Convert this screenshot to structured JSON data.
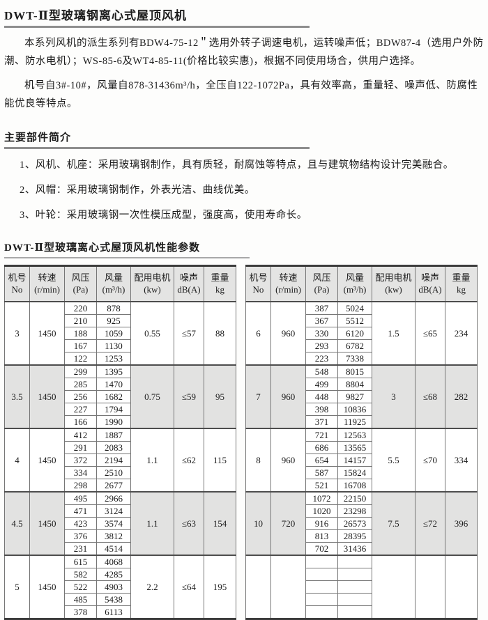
{
  "page": {
    "title": "DWT-Ⅱ型玻璃钢离心式屋顶风机",
    "para1": "本系列风机的派生系列有BDW4-75-12＂选用外转子调速电机，运转噪声低；BDW87-4（选用户外防潮、防水电机）；WS-85-6及WT4-85-11(价格比较实惠)，根据不同使用场合，供用户选择。",
    "para2": "机号自3#-10#，风量自878-31436m³/h，全压自122-1072Pa，具有效率高，重量轻、噪声低、防腐性能优良等特点。",
    "section2_title": "主要部件简介",
    "list": [
      "1、风机、机座：采用玻璃钢制作，具有质轻，耐腐蚀等特点，且与建筑物结构设计完美融合。",
      "2、风帽：采用玻璃钢制作，外表光洁、曲线优美。",
      "3、叶轮：采用玻璃钢一次性模压成型，强度高，使用寿命长。"
    ],
    "table_title": "DWT-Ⅱ型玻璃离心式屋顶风机性能参数"
  },
  "table": {
    "headers": [
      {
        "key": "no",
        "line1": "机号",
        "line2": "No"
      },
      {
        "key": "speed",
        "line1": "转速",
        "line2": "(r/min)"
      },
      {
        "key": "pressure",
        "line1": "风压",
        "line2": "(Pa)"
      },
      {
        "key": "flow",
        "line1": "风量",
        "line2": "(m³/h)"
      },
      {
        "key": "motor",
        "line1": "配用电机",
        "line2": "(kw)"
      },
      {
        "key": "noise",
        "line1": "噪声",
        "line2": "dB(A)"
      },
      {
        "key": "weight",
        "line1": "重量",
        "line2": "kg"
      }
    ],
    "left_groups": [
      {
        "no": "3",
        "speed": "1450",
        "motor": "0.55",
        "noise": "≤57",
        "weight": "88",
        "shade": false,
        "points": [
          [
            "220",
            "878"
          ],
          [
            "210",
            "925"
          ],
          [
            "188",
            "1059"
          ],
          [
            "167",
            "1130"
          ],
          [
            "122",
            "1253"
          ]
        ]
      },
      {
        "no": "3.5",
        "speed": "1450",
        "motor": "0.75",
        "noise": "≤59",
        "weight": "95",
        "shade": true,
        "points": [
          [
            "299",
            "1395"
          ],
          [
            "285",
            "1470"
          ],
          [
            "256",
            "1682"
          ],
          [
            "227",
            "1794"
          ],
          [
            "166",
            "1990"
          ]
        ]
      },
      {
        "no": "4",
        "speed": "1450",
        "motor": "1.1",
        "noise": "≤62",
        "weight": "115",
        "shade": false,
        "points": [
          [
            "412",
            "1887"
          ],
          [
            "291",
            "2083"
          ],
          [
            "372",
            "2194"
          ],
          [
            "334",
            "2510"
          ],
          [
            "298",
            "2677"
          ]
        ]
      },
      {
        "no": "4.5",
        "speed": "1450",
        "motor": "1.1",
        "noise": "≤63",
        "weight": "154",
        "shade": true,
        "points": [
          [
            "495",
            "2966"
          ],
          [
            "471",
            "3124"
          ],
          [
            "423",
            "3574"
          ],
          [
            "376",
            "3812"
          ],
          [
            "231",
            "4514"
          ]
        ]
      },
      {
        "no": "5",
        "speed": "1450",
        "motor": "2.2",
        "noise": "≤64",
        "weight": "195",
        "shade": false,
        "points": [
          [
            "615",
            "4068"
          ],
          [
            "582",
            "4285"
          ],
          [
            "522",
            "4903"
          ],
          [
            "485",
            "5438"
          ],
          [
            "378",
            "6113"
          ]
        ]
      }
    ],
    "right_groups": [
      {
        "no": "6",
        "speed": "960",
        "motor": "1.5",
        "noise": "≤65",
        "weight": "234",
        "shade": false,
        "points": [
          [
            "387",
            "5024"
          ],
          [
            "367",
            "5512"
          ],
          [
            "330",
            "6120"
          ],
          [
            "293",
            "6782"
          ],
          [
            "223",
            "7338"
          ]
        ]
      },
      {
        "no": "7",
        "speed": "960",
        "motor": "3",
        "noise": "≤68",
        "weight": "282",
        "shade": true,
        "points": [
          [
            "548",
            "8015"
          ],
          [
            "499",
            "8804"
          ],
          [
            "448",
            "9827"
          ],
          [
            "398",
            "10836"
          ],
          [
            "371",
            "11925"
          ]
        ]
      },
      {
        "no": "8",
        "speed": "960",
        "motor": "5.5",
        "noise": "≤70",
        "weight": "334",
        "shade": false,
        "points": [
          [
            "721",
            "12563"
          ],
          [
            "686",
            "13565"
          ],
          [
            "654",
            "14157"
          ],
          [
            "587",
            "15824"
          ],
          [
            "521",
            "16708"
          ]
        ]
      },
      {
        "no": "10",
        "speed": "720",
        "motor": "7.5",
        "noise": "≤72",
        "weight": "396",
        "shade": true,
        "points": [
          [
            "1072",
            "22150"
          ],
          [
            "1020",
            "23298"
          ],
          [
            "916",
            "26573"
          ],
          [
            "813",
            "28395"
          ],
          [
            "702",
            "31436"
          ]
        ]
      },
      {
        "no": "",
        "speed": "",
        "motor": "",
        "noise": "",
        "weight": "",
        "shade": false,
        "points": [
          [
            "",
            ""
          ],
          [
            "",
            ""
          ],
          [
            "",
            ""
          ],
          [
            "",
            ""
          ],
          [
            "",
            ""
          ]
        ]
      }
    ]
  }
}
